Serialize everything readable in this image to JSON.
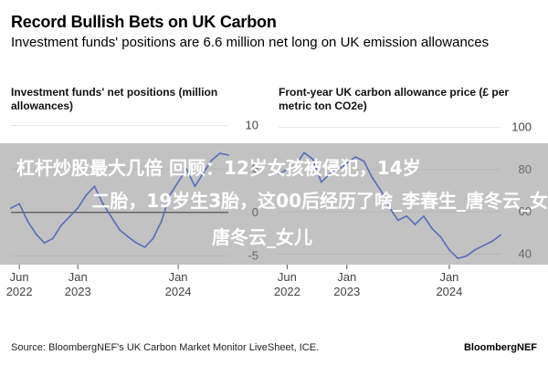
{
  "header": {
    "title": "Record Bullish Bets on UK Carbon",
    "subtitle": "Investment funds' positions are 6.6 million net long on UK emission allowances"
  },
  "colors": {
    "line": "#1e50e6",
    "zero_line": "#000000",
    "grid": "#e6e6e6",
    "overlay": "#8a8a8a"
  },
  "chart_data": [
    {
      "type": "line",
      "title": "Investment funds' net positions (million allowances)",
      "x_tick_labels": [
        [
          "Jun",
          "2022"
        ],
        [
          "Jan",
          "2023"
        ],
        [
          "Jan",
          "2024"
        ]
      ],
      "x_ticks": [
        "2022-06",
        "2023-01",
        "2024-01"
      ],
      "xlim": [
        "2022-05",
        "2024-07"
      ],
      "y_ticks": [
        10,
        5,
        0,
        -5
      ],
      "ylim": [
        -6,
        11
      ],
      "grid": true,
      "series": [
        {
          "x": [
            "2022-05",
            "2022-06",
            "2022-07",
            "2022-08",
            "2022-09",
            "2022-10",
            "2022-11",
            "2022-12",
            "2023-01",
            "2023-02",
            "2023-03",
            "2023-04",
            "2023-05",
            "2023-06",
            "2023-07",
            "2023-08",
            "2023-09",
            "2023-10",
            "2023-11",
            "2023-12",
            "2024-01",
            "2024-02",
            "2024-03",
            "2024-04",
            "2024-05",
            "2024-06",
            "2024-07"
          ],
          "y": [
            0.5,
            1.0,
            -1.0,
            -2.5,
            -3.5,
            -3.0,
            -1.5,
            -0.5,
            0.5,
            2.0,
            3.0,
            1.0,
            -0.5,
            -2.0,
            -2.8,
            -3.5,
            -4.0,
            -3.0,
            -1.0,
            2.0,
            3.5,
            5.0,
            3.0,
            4.5,
            6.0,
            6.8,
            6.6
          ]
        }
      ]
    },
    {
      "type": "line",
      "title": "Front-year UK carbon allowance price (£ per metric ton CO2e)",
      "x_tick_labels": [
        [
          "Jun",
          "2022"
        ],
        [
          "Jan",
          "2023"
        ],
        [
          "Jan",
          "2024"
        ]
      ],
      "x_ticks": [
        "2022-06",
        "2023-01",
        "2024-01"
      ],
      "xlim": [
        "2022-05",
        "2024-07"
      ],
      "y_ticks": [
        100,
        80,
        60,
        40
      ],
      "ylim": [
        35,
        105
      ],
      "grid": true,
      "series": [
        {
          "x": [
            "2022-05",
            "2022-06",
            "2022-07",
            "2022-08",
            "2022-09",
            "2022-10",
            "2022-11",
            "2022-12",
            "2023-01",
            "2023-02",
            "2023-03",
            "2023-04",
            "2023-05",
            "2023-06",
            "2023-07",
            "2023-08",
            "2023-09",
            "2023-10",
            "2023-11",
            "2023-12",
            "2024-01",
            "2024-02",
            "2024-03",
            "2024-04",
            "2024-05",
            "2024-06",
            "2024-07"
          ],
          "y": [
            78,
            80,
            82,
            88,
            85,
            74,
            78,
            80,
            83,
            86,
            84,
            76,
            70,
            62,
            56,
            58,
            54,
            58,
            52,
            48,
            42,
            38,
            39,
            42,
            44,
            46,
            49
          ]
        }
      ]
    }
  ],
  "overlay": {
    "line1": "杠杆炒股最大几倍 回顾：12岁女孩被侵犯，14岁",
    "line2": "二胎，19岁生3胎，这00后经历了啥_李春生_唐冬云_女",
    "line3": "唐冬云_女儿"
  },
  "footer": {
    "source": "Source: BloombergNEF's UK Carbon Market Monitor LiveSheet, ICE.",
    "brand": "BloombergNEF"
  }
}
